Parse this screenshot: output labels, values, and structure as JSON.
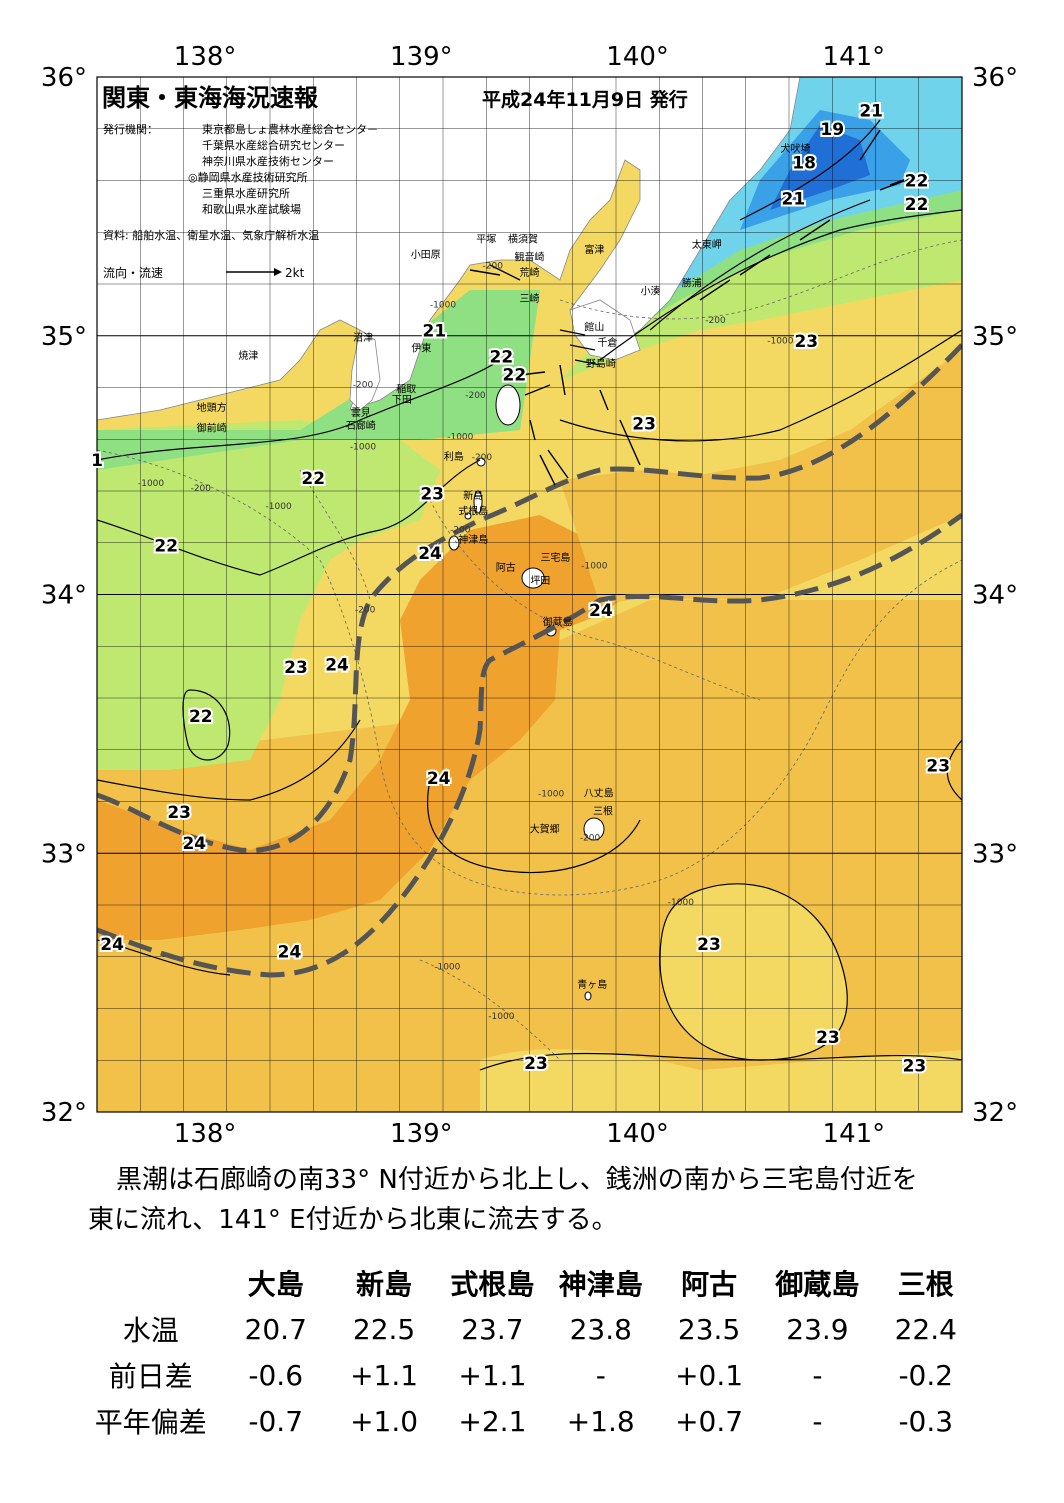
{
  "header": {
    "title": "関東・東海海況速報",
    "date": "平成24年11月9日 発行",
    "issuer_label": "発行機関：",
    "issuers": [
      "東京都島しょ農林水産総合センター",
      "千葉県水産総合研究センター",
      "神奈川県水産技術センター",
      "◎静岡県水産技術研究所",
      "三重県水産研究所",
      "和歌山県水産試験場"
    ],
    "source": "資料: 船舶水温、衛星水温、気象庁解析水温",
    "legend_label": "流向・流速",
    "legend_scale": "2kt"
  },
  "axes": {
    "lon_ticks": [
      "138°",
      "139°",
      "140°",
      "141°"
    ],
    "lat_ticks": [
      "36°",
      "35°",
      "34°",
      "33°",
      "32°"
    ],
    "lon_range": [
      137.5,
      141.5
    ],
    "lat_range": [
      32.0,
      36.0
    ]
  },
  "colors": {
    "t18": "#1f6fd6",
    "t19": "#3aa0e8",
    "t20": "#6fd3ec",
    "t21": "#8fe082",
    "t22": "#bfe870",
    "t23": "#f3d862",
    "t24": "#f2c14a",
    "t25": "#f0a22f",
    "land": "#ffffff",
    "kuroshio": "#555555"
  },
  "isotherm_labels": [
    {
      "text": "21",
      "lon": 141.08,
      "lat": 35.87
    },
    {
      "text": "19",
      "lon": 140.9,
      "lat": 35.8
    },
    {
      "text": "18",
      "lon": 140.77,
      "lat": 35.67
    },
    {
      "text": "21",
      "lon": 140.72,
      "lat": 35.53
    },
    {
      "text": "22",
      "lon": 141.29,
      "lat": 35.6
    },
    {
      "text": "22",
      "lon": 141.29,
      "lat": 35.51
    },
    {
      "text": "23",
      "lon": 140.78,
      "lat": 34.98
    },
    {
      "text": "21",
      "lon": 139.06,
      "lat": 35.02
    },
    {
      "text": "22",
      "lon": 139.37,
      "lat": 34.92
    },
    {
      "text": "22",
      "lon": 139.43,
      "lat": 34.85
    },
    {
      "text": "23",
      "lon": 140.03,
      "lat": 34.66
    },
    {
      "text": "22",
      "lon": 138.5,
      "lat": 34.45
    },
    {
      "text": "23",
      "lon": 139.05,
      "lat": 34.39
    },
    {
      "text": "22",
      "lon": 137.82,
      "lat": 34.19
    },
    {
      "text": "24",
      "lon": 139.04,
      "lat": 34.16
    },
    {
      "text": "24",
      "lon": 139.83,
      "lat": 33.94
    },
    {
      "text": "23",
      "lon": 138.42,
      "lat": 33.72
    },
    {
      "text": "24",
      "lon": 138.61,
      "lat": 33.73
    },
    {
      "text": "22",
      "lon": 137.98,
      "lat": 33.53
    },
    {
      "text": "24",
      "lon": 139.08,
      "lat": 33.29
    },
    {
      "text": "23",
      "lon": 141.39,
      "lat": 33.34
    },
    {
      "text": "23",
      "lon": 137.88,
      "lat": 33.16
    },
    {
      "text": "24",
      "lon": 137.95,
      "lat": 33.04
    },
    {
      "text": "24",
      "lon": 137.57,
      "lat": 32.65
    },
    {
      "text": "24",
      "lon": 138.39,
      "lat": 32.62
    },
    {
      "text": "23",
      "lon": 140.33,
      "lat": 32.65
    },
    {
      "text": "23",
      "lon": 140.88,
      "lat": 32.29
    },
    {
      "text": "23",
      "lon": 139.53,
      "lat": 32.19
    },
    {
      "text": "23",
      "lon": 141.28,
      "lat": 32.18
    },
    {
      "text": "1",
      "lon": 137.5,
      "lat": 34.52
    }
  ],
  "places": [
    {
      "text": "犬吠埼",
      "lon": 140.73,
      "lat": 35.71
    },
    {
      "text": "太東岬",
      "lon": 140.32,
      "lat": 35.34
    },
    {
      "text": "勝浦",
      "lon": 140.25,
      "lat": 35.19
    },
    {
      "text": "小湊",
      "lon": 140.06,
      "lat": 35.16
    },
    {
      "text": "富津",
      "lon": 139.8,
      "lat": 35.32
    },
    {
      "text": "平塚",
      "lon": 139.3,
      "lat": 35.36
    },
    {
      "text": "横須賀",
      "lon": 139.47,
      "lat": 35.36
    },
    {
      "text": "観音崎",
      "lon": 139.5,
      "lat": 35.29
    },
    {
      "text": "荒崎",
      "lon": 139.5,
      "lat": 35.23
    },
    {
      "text": "三崎",
      "lon": 139.5,
      "lat": 35.13
    },
    {
      "text": "小田原",
      "lon": 139.02,
      "lat": 35.3
    },
    {
      "text": "館山",
      "lon": 139.8,
      "lat": 35.02
    },
    {
      "text": "千倉",
      "lon": 139.86,
      "lat": 34.96
    },
    {
      "text": "野島崎",
      "lon": 139.83,
      "lat": 34.88
    },
    {
      "text": "沼津",
      "lon": 138.73,
      "lat": 34.98
    },
    {
      "text": "伊東",
      "lon": 139.0,
      "lat": 34.94
    },
    {
      "text": "焼津",
      "lon": 138.2,
      "lat": 34.91
    },
    {
      "text": "稲取",
      "lon": 138.93,
      "lat": 34.78
    },
    {
      "text": "下田",
      "lon": 138.91,
      "lat": 34.74
    },
    {
      "text": "雲見",
      "lon": 138.72,
      "lat": 34.69
    },
    {
      "text": "石廊崎",
      "lon": 138.72,
      "lat": 34.64
    },
    {
      "text": "地頭方",
      "lon": 138.03,
      "lat": 34.71
    },
    {
      "text": "御前崎",
      "lon": 138.03,
      "lat": 34.63
    },
    {
      "text": "利島",
      "lon": 139.15,
      "lat": 34.52
    },
    {
      "text": "新島",
      "lon": 139.24,
      "lat": 34.37
    },
    {
      "text": "式根島",
      "lon": 139.24,
      "lat": 34.31
    },
    {
      "text": "神津島",
      "lon": 139.24,
      "lat": 34.2
    },
    {
      "text": "三宅島",
      "lon": 139.62,
      "lat": 34.13
    },
    {
      "text": "阿古",
      "lon": 139.39,
      "lat": 34.09
    },
    {
      "text": "坪田",
      "lon": 139.55,
      "lat": 34.04
    },
    {
      "text": "御蔵島",
      "lon": 139.63,
      "lat": 33.88
    },
    {
      "text": "八丈島",
      "lon": 139.82,
      "lat": 33.22
    },
    {
      "text": "三根",
      "lon": 139.84,
      "lat": 33.15
    },
    {
      "text": "大賀郷",
      "lon": 139.57,
      "lat": 33.08
    },
    {
      "text": "青ヶ島",
      "lon": 139.79,
      "lat": 32.48
    }
  ],
  "depth_labels": [
    {
      "text": "-200",
      "lon": 139.33,
      "lat": 35.26
    },
    {
      "text": "-1000",
      "lon": 139.1,
      "lat": 35.11
    },
    {
      "text": "-200",
      "lon": 140.36,
      "lat": 35.05
    },
    {
      "text": "-1000",
      "lon": 140.66,
      "lat": 34.97
    },
    {
      "text": "-200",
      "lon": 138.73,
      "lat": 34.8
    },
    {
      "text": "-1000",
      "lon": 138.73,
      "lat": 34.56
    },
    {
      "text": "-200",
      "lon": 139.25,
      "lat": 34.76
    },
    {
      "text": "-1000",
      "lon": 139.18,
      "lat": 34.6
    },
    {
      "text": "-200",
      "lon": 139.28,
      "lat": 34.52
    },
    {
      "text": "-1000",
      "lon": 137.75,
      "lat": 34.42
    },
    {
      "text": "-200",
      "lon": 137.98,
      "lat": 34.4
    },
    {
      "text": "-1000",
      "lon": 138.34,
      "lat": 34.33
    },
    {
      "text": "-200",
      "lon": 139.18,
      "lat": 34.24
    },
    {
      "text": "-1000",
      "lon": 139.8,
      "lat": 34.1
    },
    {
      "text": "-200",
      "lon": 138.74,
      "lat": 33.93
    },
    {
      "text": "-1000",
      "lon": 139.6,
      "lat": 33.22
    },
    {
      "text": "-200",
      "lon": 139.78,
      "lat": 33.05
    },
    {
      "text": "-1000",
      "lon": 140.2,
      "lat": 32.8
    },
    {
      "text": "-1000",
      "lon": 139.12,
      "lat": 32.55
    },
    {
      "text": "-1000",
      "lon": 139.37,
      "lat": 32.36
    }
  ],
  "summary": {
    "line1": "黒潮は石廊崎の南33° N付近から北上し、銭洲の南から三宅島付近を",
    "line2": "東に流れ、141° E付近から北東に流去する。"
  },
  "table": {
    "stations": [
      "大島",
      "新島",
      "式根島",
      "神津島",
      "阿古",
      "御蔵島",
      "三根"
    ],
    "rows": [
      {
        "label": "水温",
        "values": [
          "20.7",
          "22.5",
          "23.7",
          "23.8",
          "23.5",
          "23.9",
          "22.4"
        ]
      },
      {
        "label": "前日差",
        "values": [
          "-0.6",
          "+1.1",
          "+1.1",
          "-",
          "+0.1",
          "-",
          "-0.2"
        ]
      },
      {
        "label": "平年偏差",
        "values": [
          "-0.7",
          "+1.0",
          "+2.1",
          "+1.8",
          "+0.7",
          "-",
          "-0.3"
        ]
      }
    ]
  }
}
